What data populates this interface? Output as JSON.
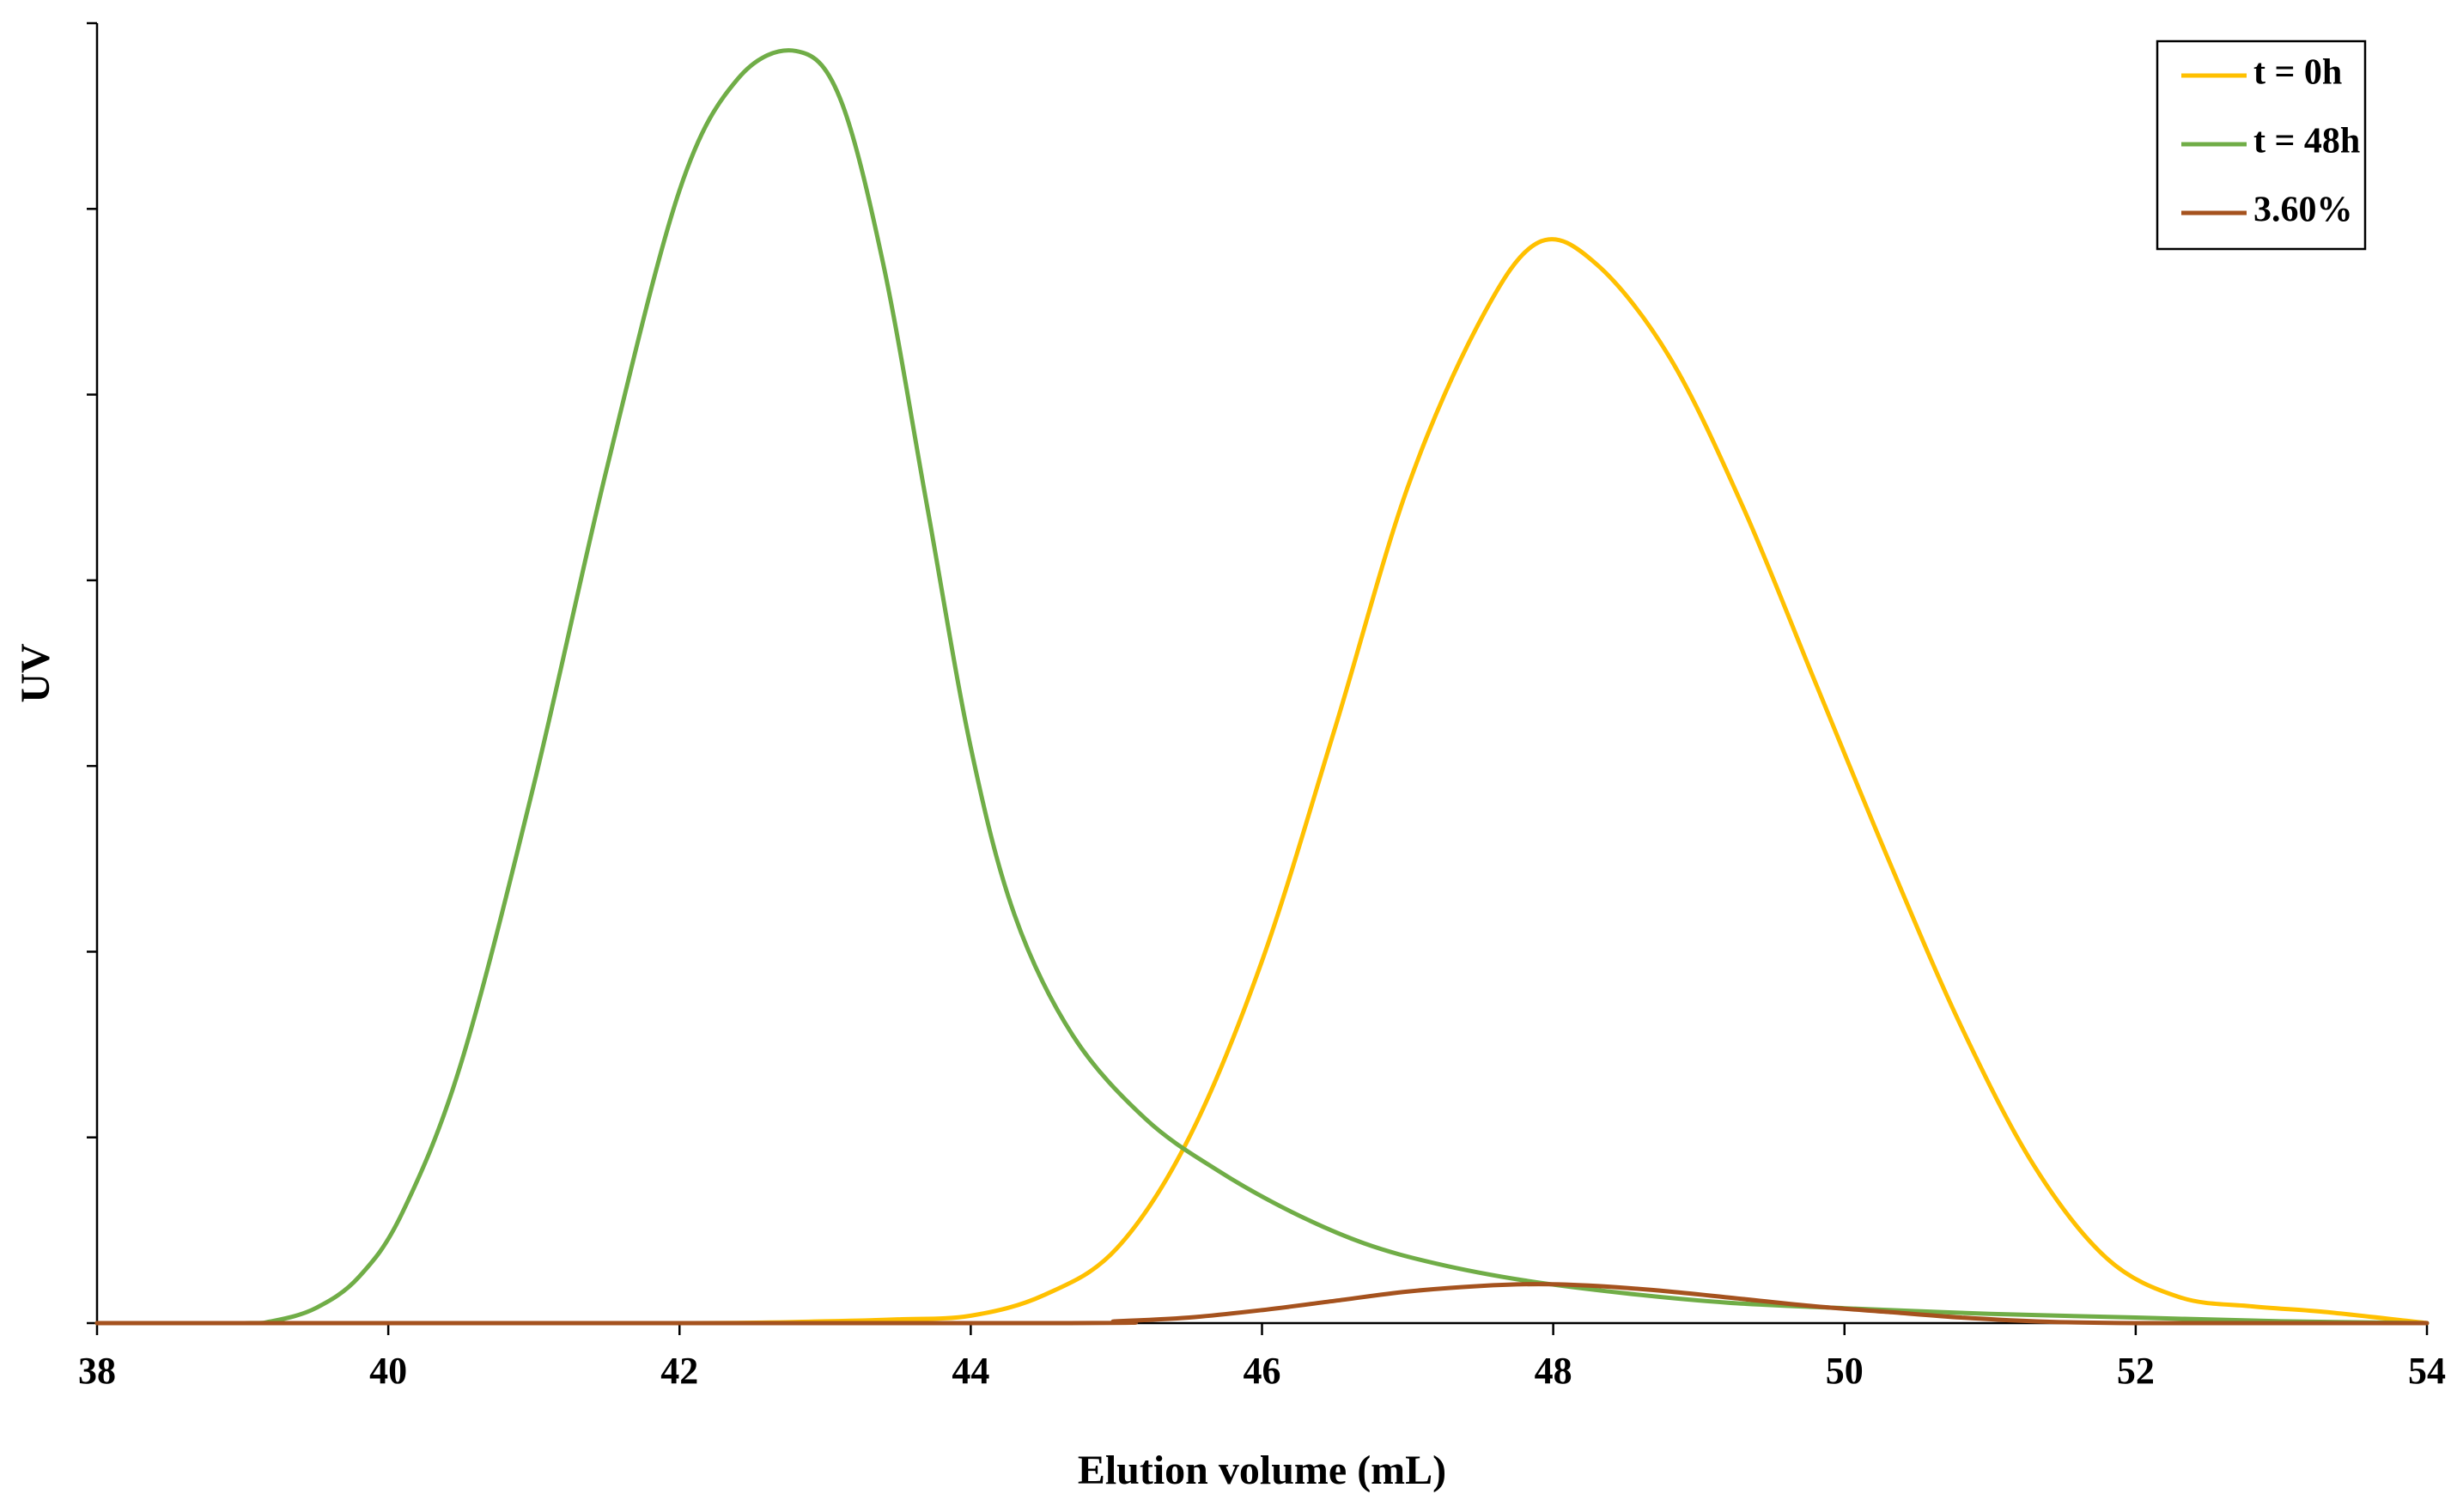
{
  "chart_data": {
    "type": "line",
    "title": "",
    "xlabel": "Elution volume (mL)",
    "ylabel": "UV",
    "xlim": [
      38,
      54
    ],
    "ylim": [
      0,
      7
    ],
    "x_ticks": [
      38,
      40,
      42,
      44,
      46,
      48,
      50,
      52,
      54
    ],
    "x_tick_labels": [
      "38",
      "40",
      "42",
      "44",
      "46",
      "48",
      "50",
      "52",
      "54"
    ],
    "y_tick_values": [
      0,
      1,
      2,
      3,
      4,
      5,
      6,
      7
    ],
    "y_tick_labels_shown": false,
    "grid": false,
    "legend_position": "top-right",
    "series": [
      {
        "name": "t = 0h",
        "color": "#FFC000",
        "points": [
          [
            38,
            0
          ],
          [
            42,
            0
          ],
          [
            43,
            0.01
          ],
          [
            43.5,
            0.02
          ],
          [
            44,
            0.04
          ],
          [
            44.5,
            0.15
          ],
          [
            45,
            0.4
          ],
          [
            45.5,
            1.0
          ],
          [
            46,
            1.95
          ],
          [
            46.5,
            3.2
          ],
          [
            47,
            4.5
          ],
          [
            47.5,
            5.4
          ],
          [
            47.9,
            5.82
          ],
          [
            48.3,
            5.7
          ],
          [
            48.8,
            5.2
          ],
          [
            49.3,
            4.4
          ],
          [
            49.8,
            3.45
          ],
          [
            50.3,
            2.5
          ],
          [
            50.8,
            1.6
          ],
          [
            51.3,
            0.85
          ],
          [
            51.8,
            0.35
          ],
          [
            52.3,
            0.14
          ],
          [
            52.8,
            0.09
          ],
          [
            53.3,
            0.06
          ],
          [
            54,
            0
          ]
        ]
      },
      {
        "name": "t = 48h",
        "color": "#70AD47",
        "points": [
          [
            38,
            0
          ],
          [
            39,
            0
          ],
          [
            39.2,
            0.01
          ],
          [
            39.5,
            0.08
          ],
          [
            39.8,
            0.25
          ],
          [
            40.1,
            0.6
          ],
          [
            40.5,
            1.4
          ],
          [
            41,
            2.9
          ],
          [
            41.5,
            4.6
          ],
          [
            42,
            6.1
          ],
          [
            42.4,
            6.7
          ],
          [
            42.8,
            6.85
          ],
          [
            43.1,
            6.6
          ],
          [
            43.4,
            5.7
          ],
          [
            43.7,
            4.4
          ],
          [
            44,
            3.1
          ],
          [
            44.3,
            2.2
          ],
          [
            44.7,
            1.55
          ],
          [
            45.2,
            1.1
          ],
          [
            45.7,
            0.82
          ],
          [
            46.2,
            0.6
          ],
          [
            46.7,
            0.43
          ],
          [
            47.2,
            0.32
          ],
          [
            47.8,
            0.23
          ],
          [
            48.5,
            0.16
          ],
          [
            49.2,
            0.11
          ],
          [
            50,
            0.08
          ],
          [
            51,
            0.05
          ],
          [
            52,
            0.03
          ],
          [
            53,
            0.01
          ],
          [
            54,
            0
          ]
        ]
      },
      {
        "name": "3.60%",
        "color": "#A5521E",
        "points": [
          [
            38,
            0
          ],
          [
            44.5,
            0
          ],
          [
            45,
            0.01
          ],
          [
            45.5,
            0.03
          ],
          [
            46,
            0.07
          ],
          [
            46.5,
            0.12
          ],
          [
            47,
            0.17
          ],
          [
            47.5,
            0.2
          ],
          [
            47.9,
            0.21
          ],
          [
            48.3,
            0.2
          ],
          [
            48.8,
            0.17
          ],
          [
            49.3,
            0.13
          ],
          [
            49.8,
            0.09
          ],
          [
            50.3,
            0.06
          ],
          [
            50.8,
            0.03
          ],
          [
            51.3,
            0.01
          ],
          [
            52,
            0
          ],
          [
            54,
            0
          ]
        ]
      }
    ]
  }
}
